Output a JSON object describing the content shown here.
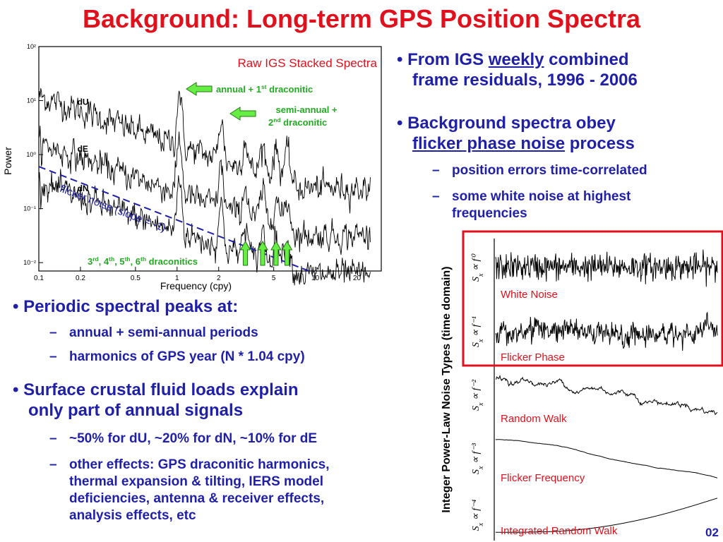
{
  "title": "Background:  Long-term GPS Position Spectra",
  "right_bullets": {
    "b1_pre": "• From IGS ",
    "b1_ul": "weekly",
    "b1_post": " combined",
    "b1_line2": "frame residuals, 1996 - 2006",
    "b2_line1": "• Background spectra obey",
    "b2_ul": "flicker phase noise",
    "b2_post": " process",
    "sub1": "position errors time-correlated",
    "sub2_line1": "some white noise at highest",
    "sub2_line2": "frequencies",
    "dash": "–"
  },
  "left_bullets": {
    "b1": "• Periodic spectral peaks at:",
    "sub1": "annual + semi-annual periods",
    "sub2": "harmonics of GPS year (N * 1.04 cpy)",
    "b2_line1": "• Surface crustal fluid loads explain",
    "b2_line2": "only part of annual signals",
    "sub3": "~50% for dU, ~20% for dN, ~10% for dE",
    "sub4_lines": [
      "other effects: GPS draconitic harmonics,",
      "thermal expansion & tilting, IERS model",
      "deficiencies, antenna & receiver effects,",
      "analysis effects, etc"
    ],
    "dash": "–"
  },
  "slide_number": "02",
  "colors": {
    "title": "#e0101c",
    "bullets": "#1f1fa8",
    "green_label": "#22aa22",
    "arrow_green": "#66ee44",
    "box_red": "#e0101c",
    "flicker_line": "#1f1fa8"
  },
  "chart_data": [
    {
      "type": "line",
      "title": "Raw IGS Stacked Spectra",
      "xlabel": "Frequency (cpy)",
      "ylabel": "Power",
      "x_scale": "log",
      "y_scale": "log",
      "xlim": [
        0.1,
        30
      ],
      "ylim": [
        0.007,
        100
      ],
      "x_ticks": [
        {
          "v": 0.1,
          "label": "0.1"
        },
        {
          "v": 0.2,
          "label": "0.2"
        },
        {
          "v": 0.5,
          "label": "0.5"
        },
        {
          "v": 1,
          "label": "1"
        },
        {
          "v": 2,
          "label": "2"
        },
        {
          "v": 5,
          "label": "5"
        },
        {
          "v": 10,
          "label": "10"
        },
        {
          "v": 20,
          "label": "20"
        }
      ],
      "y_ticks": [
        {
          "v": 100,
          "label": "10²"
        },
        {
          "v": 10,
          "label": "10¹"
        },
        {
          "v": 1,
          "label": "10⁰"
        },
        {
          "v": 0.1,
          "label": "10⁻¹"
        },
        {
          "v": 0.01,
          "label": "10⁻²"
        }
      ],
      "series": [
        {
          "name": "dU",
          "base": 12,
          "slope": -0.9
        },
        {
          "name": "dE",
          "base": 1.6,
          "slope": -0.9
        },
        {
          "name": "dN",
          "base": 0.3,
          "slope": -0.9
        }
      ],
      "peaks_cpy": [
        1.04,
        2.08,
        3.12,
        4.16,
        5.2,
        6.24
      ],
      "annotations": {
        "annual": "annual + 1st draconitic",
        "semi_l1": "semi-annual +",
        "semi_l2": "2nd draconitic",
        "draconitics": "3rd, 4th, 5th, 6th draconitics",
        "flicker": "flicker noise (slope = -1)"
      },
      "flicker_line": {
        "x": [
          0.1,
          9
        ],
        "y": [
          0.6,
          0.007
        ]
      },
      "draconitic_arrows_cpy": [
        3.12,
        4.16,
        5.2,
        6.24
      ]
    },
    {
      "type": "line",
      "title": "Integer Power-Law Noise Types (time domain)",
      "series": [
        {
          "name": "White Noise",
          "exponent": "f⁰"
        },
        {
          "name": "Flicker Phase",
          "exponent": "f⁻¹"
        },
        {
          "name": "Random Walk",
          "exponent": "f⁻²"
        },
        {
          "name": "Flicker Frequency",
          "exponent": "f⁻³"
        },
        {
          "name": "Integrated Random Walk",
          "exponent": "f⁻⁴"
        }
      ],
      "ylabel_prefix": "S",
      "ylabel_sub": "x",
      "ylabel_prop": "∝"
    }
  ]
}
